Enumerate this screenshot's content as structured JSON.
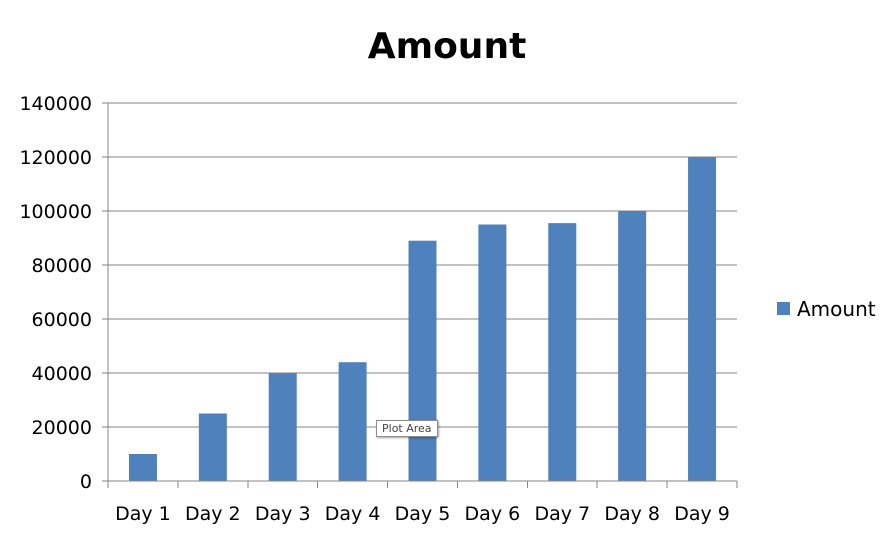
{
  "chart_data": {
    "type": "bar",
    "title": "Amount",
    "categories": [
      "Day 1",
      "Day 2",
      "Day 3",
      "Day 4",
      "Day 5",
      "Day 6",
      "Day 7",
      "Day 8",
      "Day 9"
    ],
    "series": [
      {
        "name": "Amount",
        "values": [
          10000,
          25000,
          40000,
          44000,
          89000,
          95000,
          95500,
          100000,
          120000
        ]
      }
    ],
    "yticks": [
      "0",
      "20000",
      "40000",
      "60000",
      "80000",
      "100000",
      "120000",
      "140000"
    ],
    "ylim": [
      0,
      140000
    ],
    "ytick_step": 20000,
    "grid": true,
    "legend_position": "right",
    "colors": {
      "bar": "#4f81bd",
      "grid": "#868686",
      "axis": "#868686"
    }
  },
  "tooltip": {
    "text": "Plot Area"
  }
}
